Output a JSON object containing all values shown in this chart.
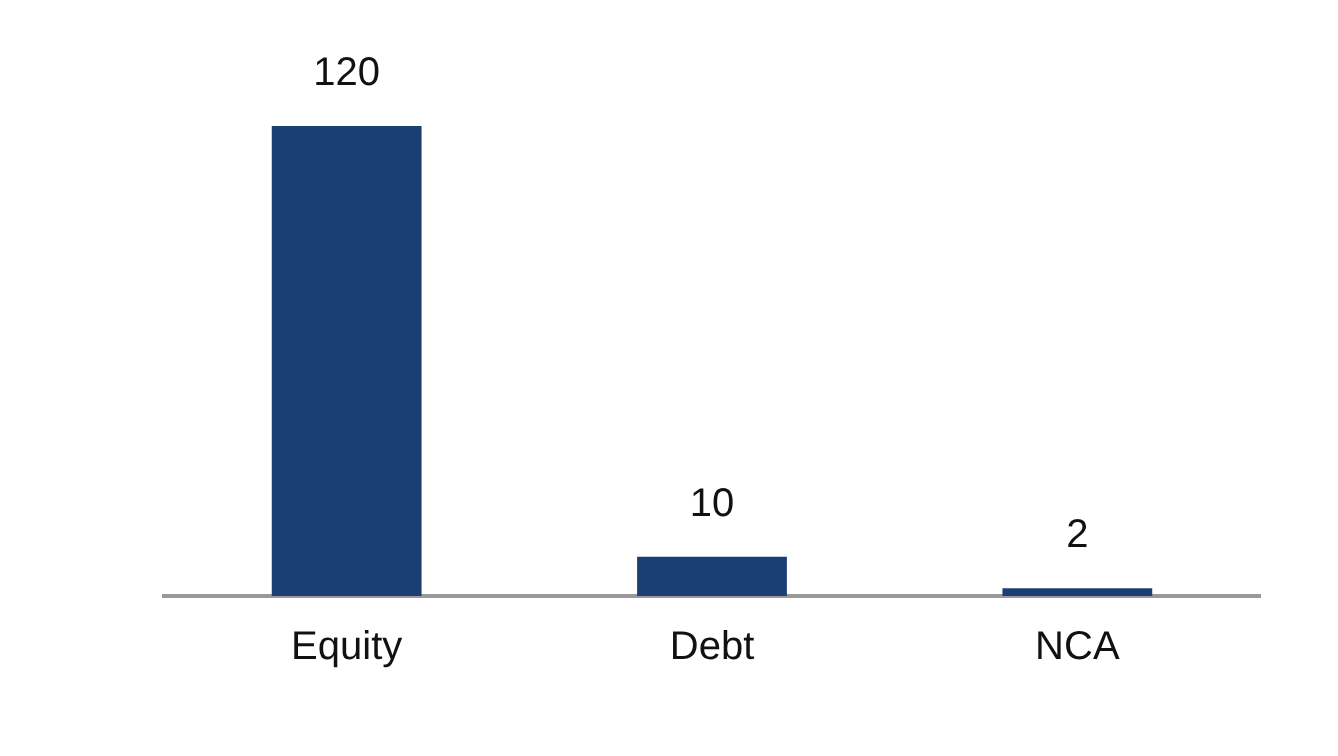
{
  "chart_data": {
    "type": "bar",
    "categories": [
      "Equity",
      "Debt",
      "NCA"
    ],
    "values": [
      120,
      10,
      2
    ],
    "color": "#1b3f73",
    "data_labels": true,
    "grid": false,
    "legend": false
  }
}
